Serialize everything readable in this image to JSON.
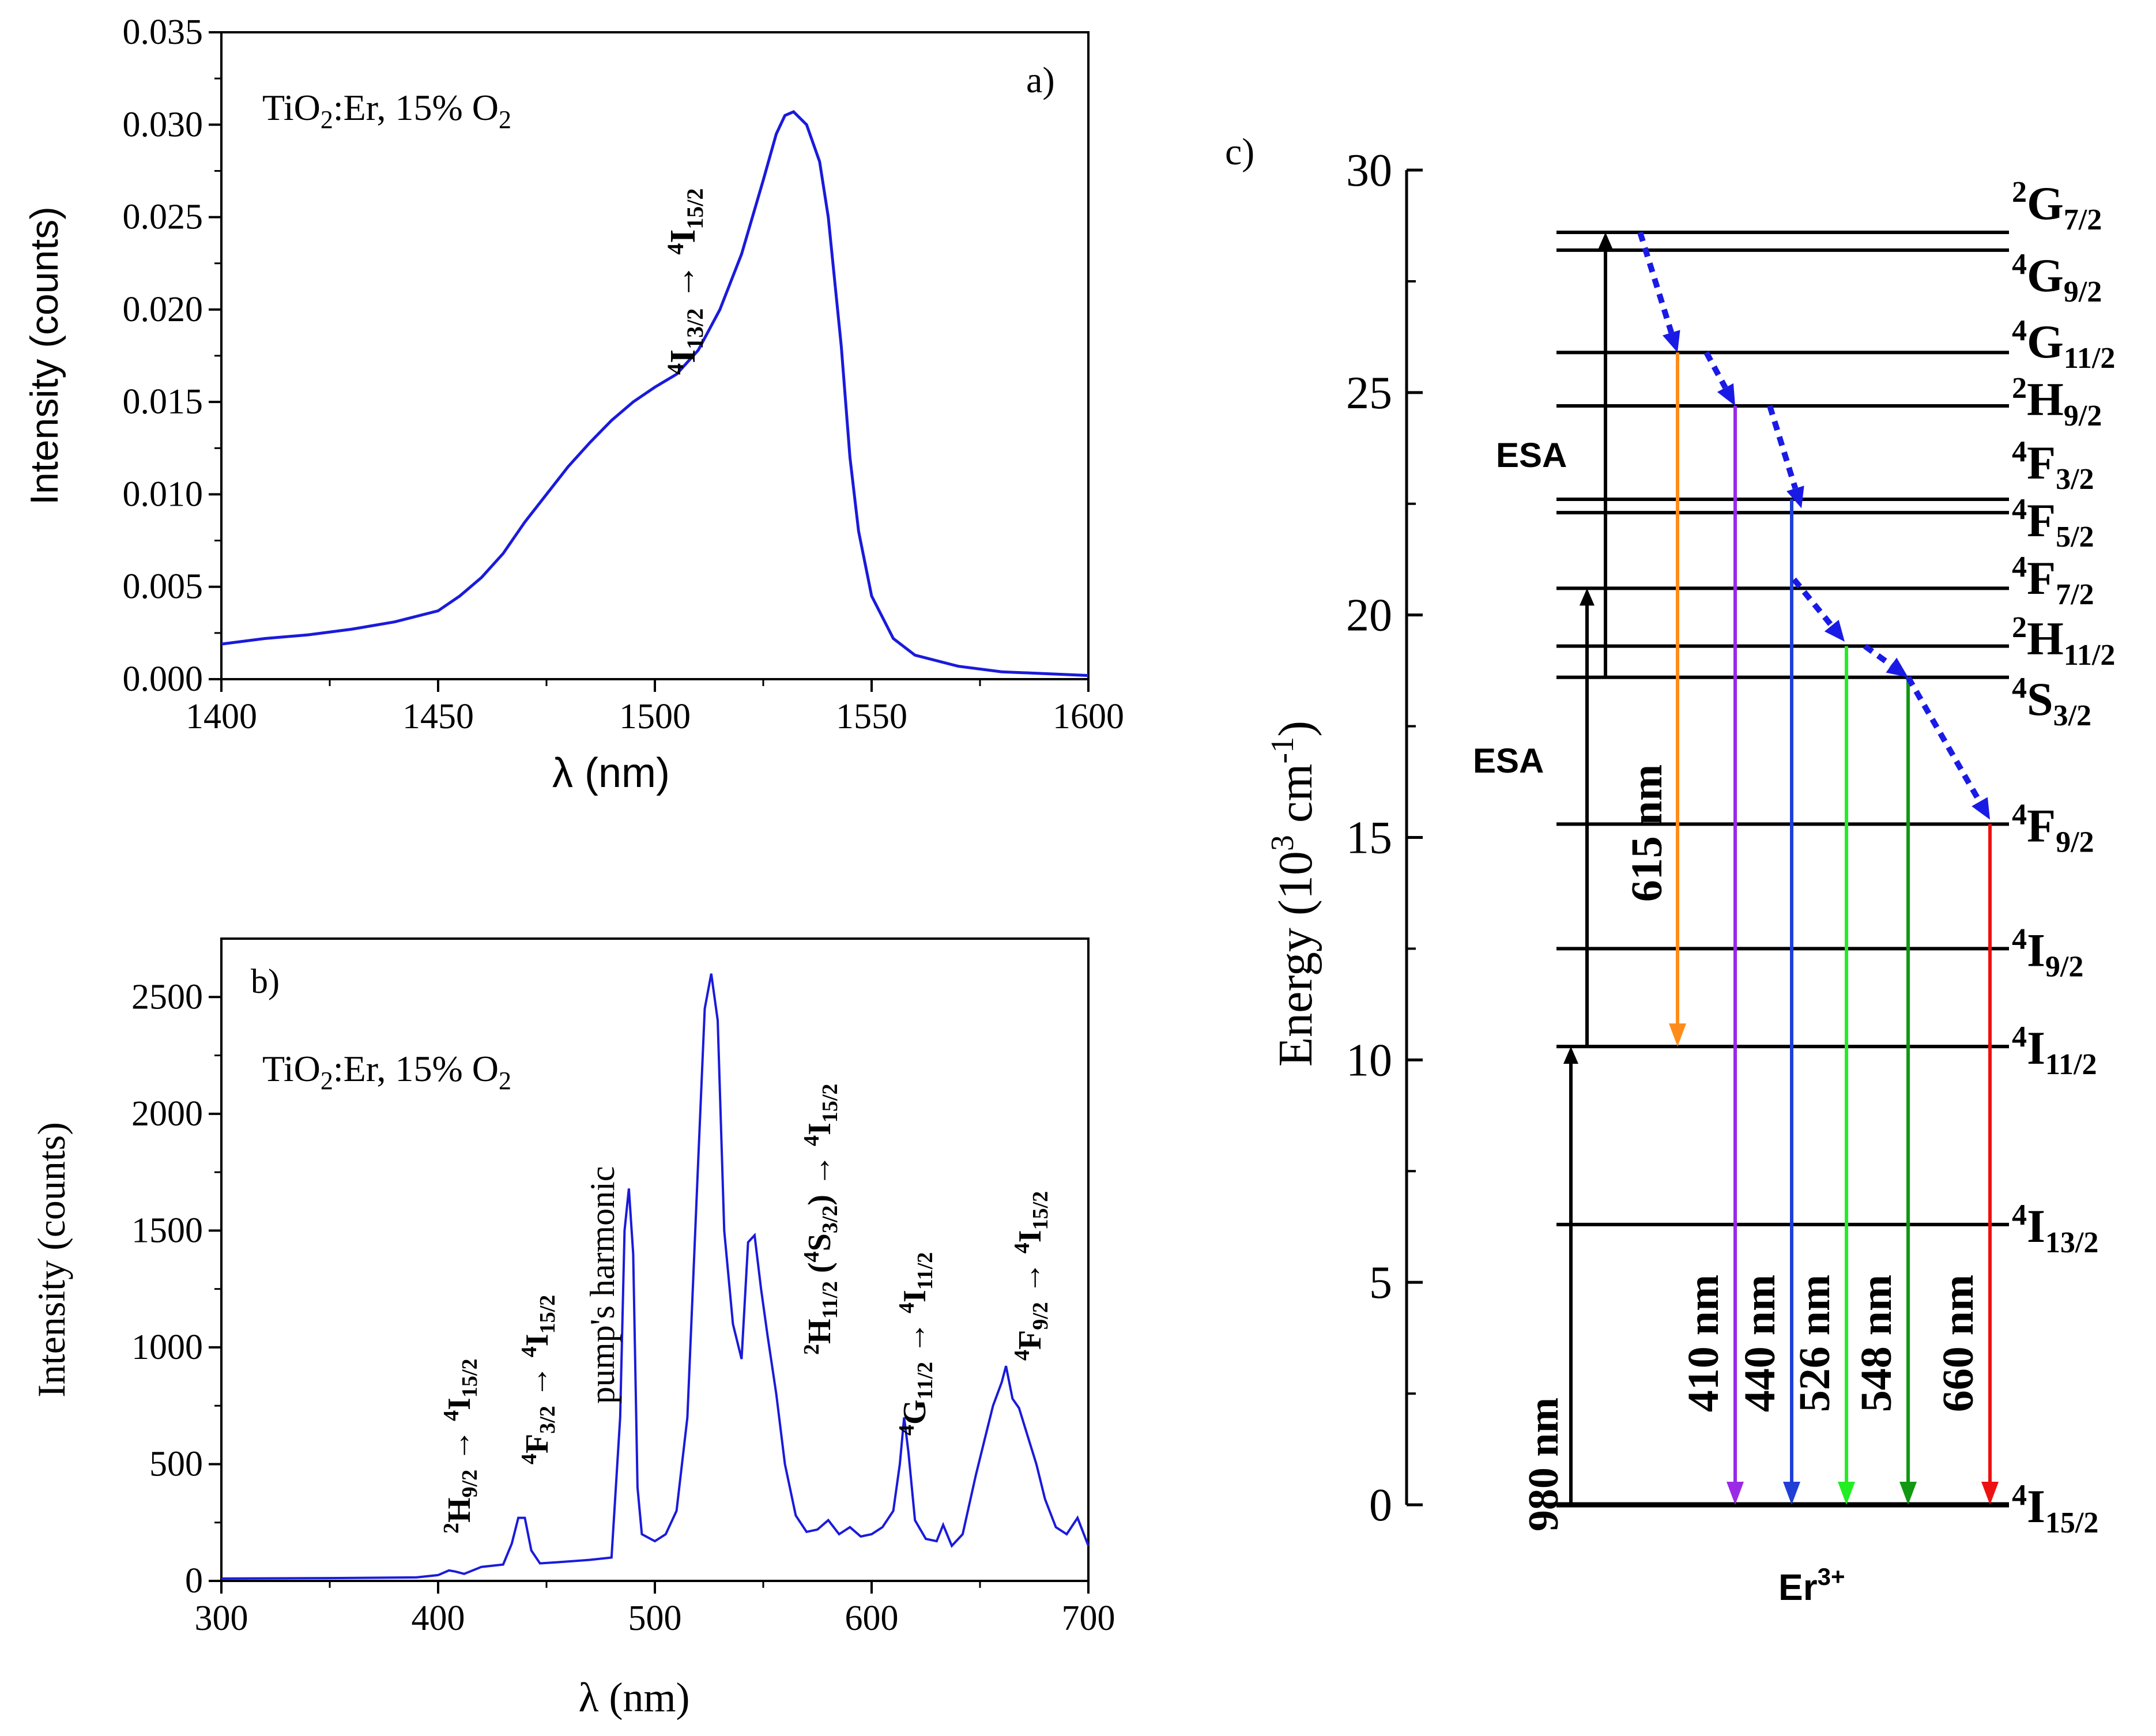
{
  "chart_data": [
    {
      "type": "line",
      "panel_label": "a)",
      "sample_text": "TiO",
      "sample_sub": "2",
      "sample_text2": ":Er, 15% O",
      "sample_sub2": "2",
      "xlabel": "λ (nm)",
      "ylabel": "Intensity (counts)",
      "xlim": [
        1400,
        1600
      ],
      "ylim": [
        0,
        0.035
      ],
      "xticks": [
        "1400",
        "1450",
        "1500",
        "1550",
        "1600"
      ],
      "yticks": [
        "0.000",
        "0.005",
        "0.010",
        "0.015",
        "0.020",
        "0.025",
        "0.030",
        "0.035"
      ],
      "color": "#1a1adb",
      "annotation": {
        "sup1": "4",
        "main1": "I",
        "sub1": "13/2",
        "arrow": " → ",
        "sup2": "4",
        "main2": "I",
        "sub2": "15/2"
      },
      "series": [
        {
          "x": [
            1400,
            1410,
            1420,
            1430,
            1440,
            1450,
            1455,
            1460,
            1465,
            1470,
            1475,
            1480,
            1485,
            1490,
            1495,
            1500,
            1505,
            1510,
            1515,
            1520,
            1525,
            1528,
            1530,
            1532,
            1535,
            1538,
            1540,
            1543,
            1545,
            1547,
            1550,
            1555,
            1560,
            1570,
            1580,
            1590,
            1600
          ],
          "y": [
            0.0019,
            0.0022,
            0.0024,
            0.0027,
            0.0031,
            0.0037,
            0.0045,
            0.0055,
            0.0068,
            0.0085,
            0.01,
            0.0115,
            0.0128,
            0.014,
            0.015,
            0.0158,
            0.0165,
            0.0178,
            0.02,
            0.023,
            0.027,
            0.0295,
            0.0305,
            0.0307,
            0.03,
            0.028,
            0.025,
            0.018,
            0.012,
            0.008,
            0.0045,
            0.0022,
            0.0013,
            0.0007,
            0.0004,
            0.0003,
            0.0002
          ]
        }
      ]
    },
    {
      "type": "line",
      "panel_label": "b)",
      "sample_text": "TiO",
      "sample_sub": "2",
      "sample_text2": ":Er, 15% O",
      "sample_sub2": "2",
      "xlabel": "λ (nm)",
      "ylabel": "Intensity (counts)",
      "xlim": [
        300,
        700
      ],
      "ylim": [
        0,
        2750
      ],
      "xticks": [
        "300",
        "400",
        "500",
        "600",
        "700"
      ],
      "yticks": [
        "0",
        "500",
        "1000",
        "1500",
        "2000",
        "2500"
      ],
      "color": "#1a1adb",
      "annotations": [
        {
          "x": 408,
          "y": 80,
          "sup1": "2",
          "main1": "H",
          "sub1": "9/2",
          "arrow": " → ",
          "sup2": "4",
          "main2": "I",
          "sub2": "15/2"
        },
        {
          "x": 440,
          "y": 300,
          "sup1": "4",
          "main1": "F",
          "sub1": "3/2",
          "arrow": " → ",
          "sup2": "4",
          "main2": "I",
          "sub2": "15/2"
        },
        {
          "x": 488,
          "y": 750,
          "plain": "pump's harmonic"
        },
        {
          "x": 578,
          "y": 1020,
          "sup1": "2",
          "main1": "H",
          "sub1": "11/2",
          "mid": " (",
          "sup3": "4",
          "main3": "S",
          "sub3": "3/2",
          "mid2": ") → ",
          "sup2": "4",
          "main2": "I",
          "sub2": "15/2"
        },
        {
          "x": 620,
          "y": 760,
          "sup1": "4",
          "main1": "G",
          "sub1": "11/2",
          "arrow": " → ",
          "sup2": "4",
          "main2": "I",
          "sub2": "11/2"
        },
        {
          "x": 668,
          "y": 980,
          "sup1": "4",
          "main1": "F",
          "sub1": "9/2",
          "arrow": " → ",
          "sup2": "4",
          "main2": "I",
          "sub2": "15/2"
        }
      ],
      "series": [
        {
          "x": [
            300,
            350,
            390,
            400,
            405,
            408,
            412,
            420,
            430,
            434,
            437,
            440,
            443,
            447,
            455,
            470,
            480,
            484,
            486,
            488,
            490,
            492,
            494,
            500,
            505,
            510,
            515,
            520,
            523,
            526,
            529,
            532,
            536,
            540,
            543,
            546,
            549,
            552,
            556,
            560,
            565,
            570,
            575,
            580,
            585,
            590,
            595,
            600,
            605,
            610,
            613,
            615,
            617,
            620,
            625,
            630,
            633,
            637,
            642,
            648,
            652,
            656,
            660,
            662,
            665,
            668,
            672,
            676,
            680,
            685,
            690,
            695,
            700
          ],
          "y": [
            10,
            12,
            15,
            25,
            45,
            40,
            30,
            60,
            70,
            160,
            270,
            270,
            130,
            75,
            80,
            90,
            100,
            700,
            1500,
            1680,
            1400,
            400,
            200,
            170,
            200,
            300,
            700,
            1800,
            2450,
            2600,
            2400,
            1500,
            1100,
            950,
            1450,
            1480,
            1250,
            1050,
            800,
            500,
            280,
            210,
            220,
            260,
            200,
            230,
            190,
            200,
            230,
            300,
            500,
            700,
            550,
            260,
            180,
            170,
            240,
            150,
            200,
            450,
            600,
            750,
            850,
            920,
            780,
            740,
            620,
            500,
            350,
            230,
            200,
            270,
            150
          ]
        }
      ]
    },
    {
      "type": "energy-level-diagram",
      "panel_label": "c)",
      "ylabel_main": "Energy (10",
      "ylabel_sup": "3",
      "ylabel_mid": " cm",
      "ylabel_sup2": "-1",
      "ylabel_end": ")",
      "ylim": [
        0,
        30
      ],
      "yticks": [
        "0",
        "5",
        "10",
        "15",
        "20",
        "25",
        "30"
      ],
      "ion": "Er",
      "ion_sup": "3+",
      "levels": [
        {
          "energy": 0.0,
          "sup": "4",
          "main": "I",
          "sub": "15/2"
        },
        {
          "energy": 6.3,
          "sup": "4",
          "main": "I",
          "sub": "13/2"
        },
        {
          "energy": 10.3,
          "sup": "4",
          "main": "I",
          "sub": "11/2"
        },
        {
          "energy": 12.5,
          "sup": "4",
          "main": "I",
          "sub": "9/2"
        },
        {
          "energy": 15.3,
          "sup": "4",
          "main": "F",
          "sub": "9/2"
        },
        {
          "energy": 18.6,
          "sup": "4",
          "main": "S",
          "sub": "3/2"
        },
        {
          "energy": 19.3,
          "sup": "2",
          "main": "H",
          "sub": "11/2"
        },
        {
          "energy": 20.6,
          "sup": "4",
          "main": "F",
          "sub": "7/2"
        },
        {
          "energy": 22.3,
          "sup": "4",
          "main": "F",
          "sub": "5/2"
        },
        {
          "energy": 22.6,
          "sup": "4",
          "main": "F",
          "sub": "3/2"
        },
        {
          "energy": 24.7,
          "sup": "2",
          "main": "H",
          "sub": "9/2"
        },
        {
          "energy": 25.9,
          "sup": "4",
          "main": "G",
          "sub": "11/2"
        },
        {
          "energy": 28.2,
          "sup": "4",
          "main": "G",
          "sub": "9/2"
        },
        {
          "energy": 28.6,
          "sup": "2",
          "main": "G",
          "sub": "7/2"
        }
      ],
      "pump_label": "980 nm",
      "esa_label_1": "ESA",
      "esa_label_2": "ESA",
      "emissions": [
        {
          "label": "615 nm",
          "from": 25.9,
          "to": 10.3,
          "color": "#ff8c1a"
        },
        {
          "label": "410 nm",
          "from": 24.7,
          "to": 0,
          "color": "#9a2ae6"
        },
        {
          "label": "440 nm",
          "from": 22.6,
          "to": 0,
          "color": "#1f3fd6"
        },
        {
          "label": "526 nm",
          "from": 19.3,
          "to": 0,
          "color": "#22ee22"
        },
        {
          "label": "548 nm",
          "from": 18.6,
          "to": 0,
          "color": "#119911"
        },
        {
          "label": "660 nm",
          "from": 15.3,
          "to": 0,
          "color": "#ee1111"
        }
      ],
      "nonradiative_color": "#1a1ae6"
    }
  ]
}
